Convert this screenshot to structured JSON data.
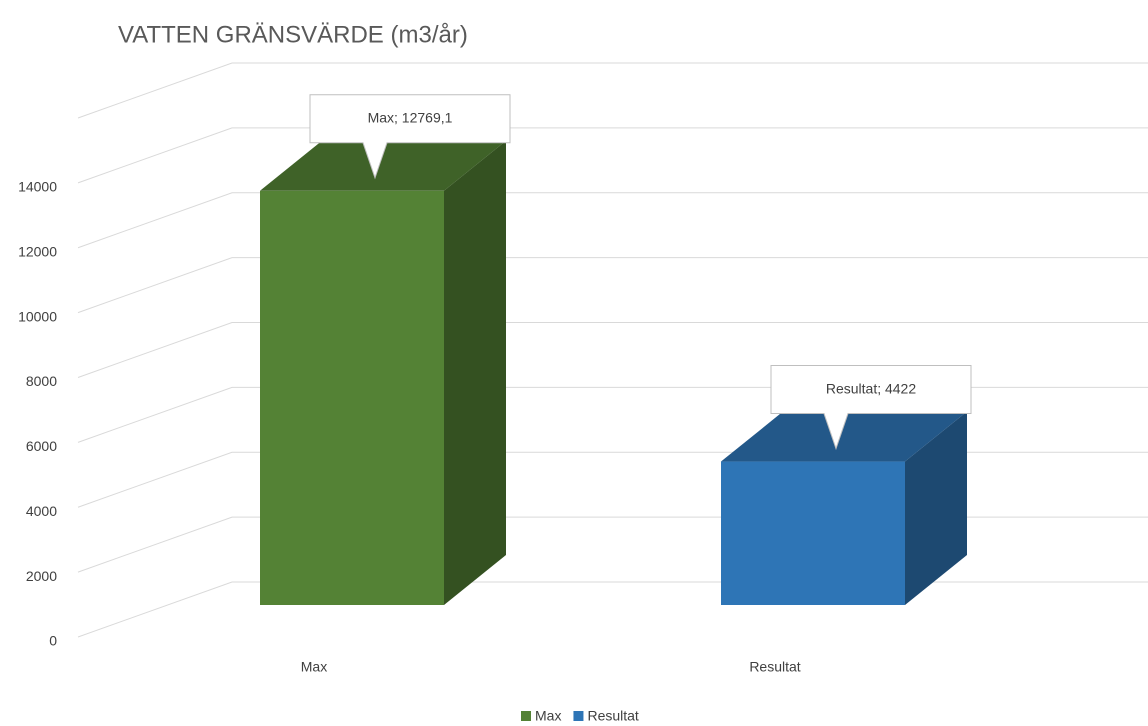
{
  "chart_data": {
    "type": "bar3d",
    "title": "VATTEN GRÄNSVÄRDE (m3/år)",
    "categories": [
      "Max",
      "Resultat"
    ],
    "series": [
      {
        "name": "Max",
        "color": "#548235",
        "values": [
          12769.1,
          null
        ],
        "value_labels": [
          "Max; 12769,1",
          null
        ]
      },
      {
        "name": "Resultat",
        "color": "#2e75b6",
        "values": [
          null,
          4422
        ],
        "value_labels": [
          null,
          "Resultat; 4422"
        ]
      }
    ],
    "ylim": [
      0,
      16000
    ],
    "yticks": [
      0,
      2000,
      4000,
      6000,
      8000,
      10000,
      12000,
      14000
    ],
    "grid": true,
    "legend": "bottom"
  }
}
